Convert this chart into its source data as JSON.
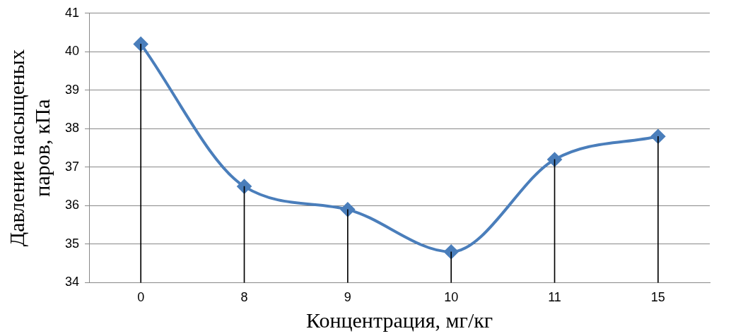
{
  "chart_data": {
    "type": "line",
    "xlabel": "Концентрация, мг/кг",
    "ylabel": "Давление насыщеных паров, кПа",
    "categories": [
      "0",
      "8",
      "9",
      "10",
      "11",
      "15"
    ],
    "series": [
      {
        "color": "#4a7ebb",
        "values": [
          40.2,
          36.5,
          35.9,
          34.8,
          37.2,
          37.8
        ]
      },
      {
        "type": "bar",
        "color": "#000000",
        "values": [
          40.2,
          36.5,
          35.9,
          34.8,
          37.2,
          37.8
        ]
      }
    ],
    "ylim": [
      34,
      41
    ],
    "yticks": [
      34,
      35,
      36,
      37,
      38,
      39,
      40,
      41
    ],
    "grid": "y",
    "legend": false,
    "marker": "diamond"
  }
}
